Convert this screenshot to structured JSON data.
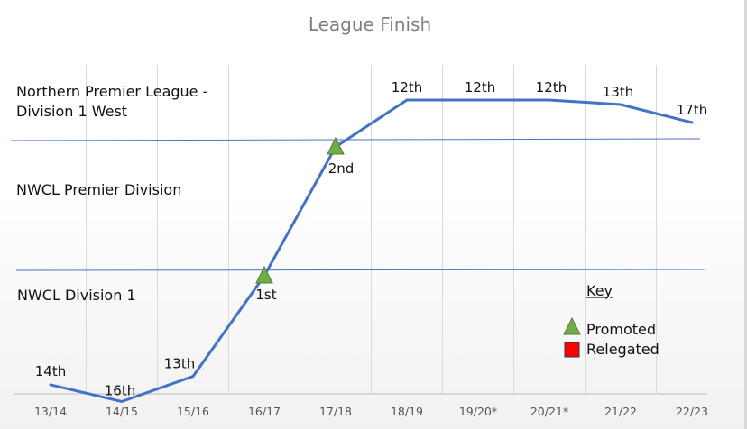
{
  "chart_data": {
    "type": "line",
    "title": "League Finish",
    "categories": [
      "13/14",
      "14/15",
      "15/16",
      "16/17",
      "17/18",
      "18/19",
      "19/20*",
      "20/21*",
      "21/22",
      "22/23"
    ],
    "series": [
      {
        "values": [
          14,
          16,
          13,
          1,
          2,
          12,
          12,
          12,
          13,
          17
        ],
        "point_labels": [
          "14th",
          "16th",
          "13th",
          "1st",
          "2nd",
          "12th",
          "12th",
          "12th",
          "13th",
          "17th"
        ],
        "levels": [
          3,
          3,
          3,
          3,
          2,
          1,
          1,
          1,
          1,
          1
        ],
        "markers": [
          null,
          null,
          null,
          "promoted",
          "promoted",
          null,
          null,
          null,
          null,
          null
        ],
        "color": "#4472c4"
      }
    ],
    "divisions": [
      {
        "level": 1,
        "label_lines": [
          "Northern Premier League -",
          "Division 1 West"
        ]
      },
      {
        "level": 2,
        "label_lines": [
          "NWCL Premier Division"
        ]
      },
      {
        "level": 3,
        "label_lines": [
          "NWCL Division 1"
        ]
      }
    ],
    "legend": {
      "title": "Key",
      "position": "bottom-right",
      "items": [
        {
          "label": "Promoted",
          "symbol": "triangle",
          "color": "#70ad47"
        },
        {
          "label": "Relegated",
          "symbol": "square",
          "color": "#ff0000"
        }
      ]
    },
    "grid": true,
    "colors": {
      "line": "#4472c4",
      "divider": "#4472c4",
      "grid": "#d9d9d9",
      "promoted": "#70ad47",
      "relegated": "#ff0000"
    }
  }
}
